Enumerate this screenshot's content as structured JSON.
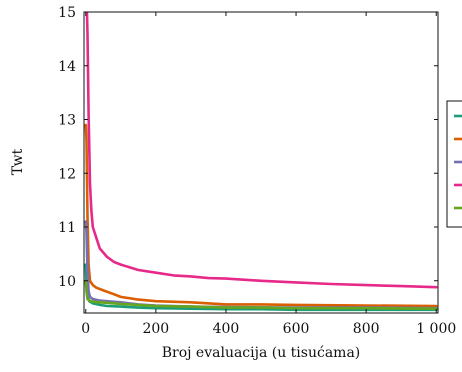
{
  "chart_data": {
    "type": "line",
    "title": "",
    "xlabel": "Broj evaluacija (u tisućama)",
    "ylabel": "Twt",
    "xlim": [
      -5,
      1005
    ],
    "ylim": [
      9.4,
      15.0
    ],
    "xticks": [
      0,
      200,
      400,
      600,
      800,
      1000
    ],
    "xtick_labels": [
      "0",
      "200",
      "400",
      "600",
      "800",
      "1 000"
    ],
    "yticks": [
      10,
      11,
      12,
      13,
      14,
      15
    ],
    "ytick_labels": [
      "10",
      "11",
      "12",
      "13",
      "14",
      "15"
    ],
    "grid": false,
    "legend_position": "right",
    "series": [
      {
        "color": "#1b9e77",
        "x": [
          0,
          2,
          5,
          10,
          20,
          40,
          60,
          100,
          150,
          200,
          300,
          400,
          500,
          600,
          800,
          1000
        ],
        "y": [
          10.3,
          9.9,
          9.7,
          9.62,
          9.58,
          9.55,
          9.53,
          9.52,
          9.5,
          9.49,
          9.48,
          9.47,
          9.47,
          9.46,
          9.46,
          9.46
        ]
      },
      {
        "color": "#d95f02",
        "x": [
          0,
          2,
          5,
          8,
          12,
          20,
          30,
          50,
          80,
          100,
          150,
          200,
          300,
          400,
          500,
          600,
          800,
          1000
        ],
        "y": [
          12.9,
          12.6,
          11.2,
          10.3,
          10.0,
          9.92,
          9.87,
          9.82,
          9.75,
          9.7,
          9.65,
          9.62,
          9.6,
          9.56,
          9.56,
          9.55,
          9.54,
          9.53
        ]
      },
      {
        "color": "#7570b3",
        "x": [
          0,
          2,
          5,
          8,
          12,
          20,
          40,
          60,
          100,
          150,
          200,
          300,
          400,
          600,
          800,
          1000
        ],
        "y": [
          11.1,
          10.9,
          10.2,
          9.8,
          9.7,
          9.66,
          9.63,
          9.62,
          9.6,
          9.56,
          9.54,
          9.52,
          9.51,
          9.5,
          9.5,
          9.49
        ]
      },
      {
        "color": "#e7298a",
        "x": [
          3,
          5,
          8,
          12,
          16,
          20,
          30,
          40,
          60,
          80,
          100,
          150,
          200,
          250,
          300,
          350,
          400,
          500,
          600,
          700,
          800,
          900,
          1000
        ],
        "y": [
          15.1,
          14.6,
          13.1,
          11.8,
          11.3,
          11.0,
          10.8,
          10.6,
          10.45,
          10.35,
          10.3,
          10.2,
          10.15,
          10.1,
          10.08,
          10.05,
          10.04,
          10.0,
          9.97,
          9.94,
          9.92,
          9.9,
          9.88
        ]
      },
      {
        "color": "#66a61e",
        "x": [
          0,
          2,
          5,
          10,
          20,
          40,
          60,
          100,
          150,
          200,
          300,
          400,
          500,
          600,
          800,
          1000
        ],
        "y": [
          10.0,
          9.8,
          9.66,
          9.63,
          9.61,
          9.6,
          9.59,
          9.57,
          9.55,
          9.53,
          9.52,
          9.5,
          9.5,
          9.49,
          9.49,
          9.48
        ]
      }
    ]
  }
}
